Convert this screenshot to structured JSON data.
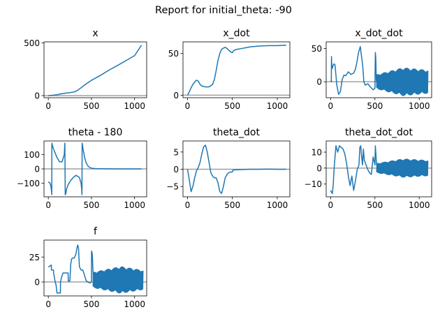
{
  "suptitle": "Report for initial_theta: -90",
  "colors": {
    "line": "#1f77b4",
    "zero_line": "#a0a0a0",
    "axes": "#000000"
  },
  "chart_data": [
    {
      "type": "line",
      "title": "x",
      "xlim": [
        -50,
        1140
      ],
      "ylim": [
        -20,
        510
      ],
      "xticks": [
        0,
        500,
        1000
      ],
      "yticks": [
        0,
        500
      ],
      "zero_line": true,
      "series": [
        {
          "x": [
            0,
            50,
            100,
            150,
            200,
            250,
            300,
            340,
            380,
            420,
            460,
            500,
            600,
            700,
            800,
            900,
            1000,
            1080
          ],
          "y": [
            0,
            3,
            8,
            17,
            23,
            28,
            35,
            50,
            75,
            100,
            123,
            145,
            190,
            240,
            285,
            332,
            380,
            478
          ]
        }
      ]
    },
    {
      "type": "line",
      "title": "x_dot",
      "xlim": [
        -50,
        1140
      ],
      "ylim": [
        -3,
        64
      ],
      "xticks": [
        0,
        500,
        1000
      ],
      "yticks": [
        0,
        50
      ],
      "zero_line": true,
      "series": [
        {
          "x": [
            0,
            20,
            40,
            60,
            80,
            100,
            120,
            140,
            160,
            200,
            240,
            280,
            300,
            320,
            340,
            360,
            380,
            400,
            420,
            440,
            460,
            480,
            500,
            510,
            520,
            550,
            600,
            650,
            700,
            800,
            900,
            1000,
            1100
          ],
          "y": [
            0,
            4,
            9,
            13,
            16,
            18,
            17,
            13,
            11,
            10,
            10,
            13,
            19,
            30,
            42,
            50,
            55,
            56.5,
            57.5,
            56,
            54,
            52,
            51,
            53,
            54,
            55,
            56,
            57,
            58,
            59,
            59.5,
            59.5,
            60
          ]
        }
      ]
    },
    {
      "type": "line",
      "title": "x_dot_dot",
      "xlim": [
        -50,
        1140
      ],
      "ylim": [
        -24,
        60
      ],
      "xticks": [
        0,
        500,
        1000
      ],
      "yticks": [
        0,
        50
      ],
      "zero_line": true,
      "series": [
        {
          "x": [
            0,
            8,
            10,
            12,
            18,
            30,
            40,
            50,
            60,
            70,
            90,
            110,
            130,
            150,
            170,
            200,
            230,
            260,
            280,
            290,
            300,
            315,
            325,
            335,
            345,
            355,
            365,
            375,
            390,
            420,
            450,
            480,
            500,
            505,
            510,
            515,
            520,
            530,
            560
          ],
          "y": [
            2,
            0,
            38,
            28,
            20,
            25,
            27,
            25,
            10,
            -5,
            -19,
            -15,
            3,
            10,
            9,
            15,
            11,
            13,
            19,
            25,
            32,
            44,
            48,
            53,
            42,
            32,
            20,
            0,
            -5,
            -3,
            -8,
            -12,
            -10,
            44,
            35,
            3,
            -2,
            -3,
            0
          ]
        }
      ],
      "oscillation": {
        "x_start": 520,
        "x_end": 1100,
        "amplitude_start": 11,
        "amplitude_peak": 22,
        "x_peak": 820,
        "amplitude_end": 18
      }
    },
    {
      "type": "line",
      "title": "theta - 180",
      "xlim": [
        -50,
        1140
      ],
      "ylim": [
        -195,
        195
      ],
      "xticks": [
        0,
        500,
        1000
      ],
      "yticks": [
        -100,
        0,
        100
      ],
      "zero_line": true,
      "series": [
        {
          "x": [
            0,
            20,
            30,
            38,
            40,
            41,
            45,
            60,
            80,
            100,
            130,
            160,
            185,
            190,
            192,
            196,
            202,
            212,
            230,
            260,
            290,
            310,
            320,
            330,
            360,
            380,
            388,
            390,
            392,
            395,
            402,
            412,
            420,
            440,
            460,
            480,
            500,
            540,
            600,
            800,
            1000,
            1080
          ],
          "y": [
            -90,
            -100,
            -120,
            -160,
            -180,
            180,
            170,
            140,
            110,
            80,
            50,
            50,
            100,
            160,
            180,
            -180,
            -175,
            -140,
            -110,
            -80,
            -60,
            -50,
            -45,
            -48,
            -60,
            -100,
            -150,
            -180,
            180,
            170,
            140,
            110,
            80,
            40,
            20,
            10,
            5,
            2,
            1,
            0,
            0,
            0
          ]
        }
      ]
    },
    {
      "type": "line",
      "title": "theta_dot",
      "xlim": [
        -50,
        1140
      ],
      "ylim": [
        -8,
        8.2
      ],
      "xticks": [
        0,
        500,
        1000
      ],
      "yticks": [
        -5,
        0,
        5
      ],
      "zero_line": true,
      "series": [
        {
          "x": [
            0,
            20,
            40,
            60,
            80,
            100,
            120,
            140,
            160,
            180,
            200,
            220,
            240,
            260,
            280,
            300,
            320,
            340,
            360,
            380,
            400,
            420,
            440,
            460,
            480,
            500,
            505,
            510,
            520,
            600,
            700,
            800,
            900,
            1000,
            1100
          ],
          "y": [
            0,
            -3,
            -6.5,
            -5,
            -2.5,
            -0.5,
            0.5,
            2,
            4.5,
            6.5,
            7,
            5,
            2,
            -1,
            -2,
            -2.5,
            -2.5,
            -4,
            -6.5,
            -7,
            -5,
            -2.5,
            -1.5,
            -1,
            -0.8,
            -0.8,
            -0.3,
            -0.2,
            -0.2,
            -0.1,
            0,
            0,
            0.05,
            0,
            0
          ]
        }
      ]
    },
    {
      "type": "line",
      "title": "theta_dot_dot",
      "xlim": [
        -50,
        1140
      ],
      "ylim": [
        -18,
        17
      ],
      "xticks": [
        0,
        500,
        1000
      ],
      "yticks": [
        -10,
        0,
        10
      ],
      "zero_line": true,
      "series": [
        {
          "x": [
            0,
            20,
            30,
            40,
            60,
            80,
            100,
            120,
            140,
            160,
            180,
            200,
            220,
            240,
            260,
            280,
            300,
            320,
            330,
            340,
            350,
            360,
            370,
            380,
            400,
            420,
            440,
            460,
            480,
            500,
            505,
            515,
            525,
            540
          ],
          "y": [
            -14,
            -16,
            -10,
            0,
            14,
            10,
            14,
            13,
            12,
            9,
            3,
            -5,
            -11,
            -5,
            -14,
            -8,
            -1,
            2,
            13,
            14,
            7,
            2,
            12,
            5,
            2,
            -1,
            -3,
            -4,
            7,
            2,
            14,
            5,
            -1,
            0
          ]
        }
      ],
      "oscillation": {
        "x_start": 520,
        "x_end": 1100,
        "amplitude_start": 3,
        "amplitude_peak": 6,
        "x_peak": 820,
        "amplitude_end": 5
      }
    },
    {
      "type": "line",
      "title": "f",
      "xlim": [
        -50,
        1140
      ],
      "ylim": [
        -14,
        42
      ],
      "xticks": [
        0,
        500,
        1000
      ],
      "yticks": [
        0,
        25
      ],
      "zero_line": true,
      "series": [
        {
          "x": [
            0,
            20,
            35,
            36,
            60,
            61,
            80,
            90,
            100,
            101,
            140,
            141,
            155,
            170,
            171,
            200,
            230,
            231,
            250,
            260,
            270,
            280,
            300,
            320,
            330,
            340,
            350,
            360,
            361,
            380,
            400,
            440,
            480,
            481,
            500,
            501,
            510,
            520
          ],
          "y": [
            15,
            16,
            17,
            12,
            12,
            9,
            0,
            -3,
            -11,
            -11,
            -11,
            0,
            5,
            9,
            9,
            9,
            9,
            1,
            1,
            18,
            23,
            24,
            24,
            28,
            33,
            37,
            34,
            16,
            15,
            12,
            12,
            1,
            -1,
            -1,
            0,
            31,
            28,
            6
          ]
        }
      ],
      "oscillation": {
        "x_start": 520,
        "x_end": 1100,
        "amplitude_start": 8,
        "amplitude_peak": 14,
        "x_peak": 840,
        "amplitude_end": 10
      }
    }
  ]
}
